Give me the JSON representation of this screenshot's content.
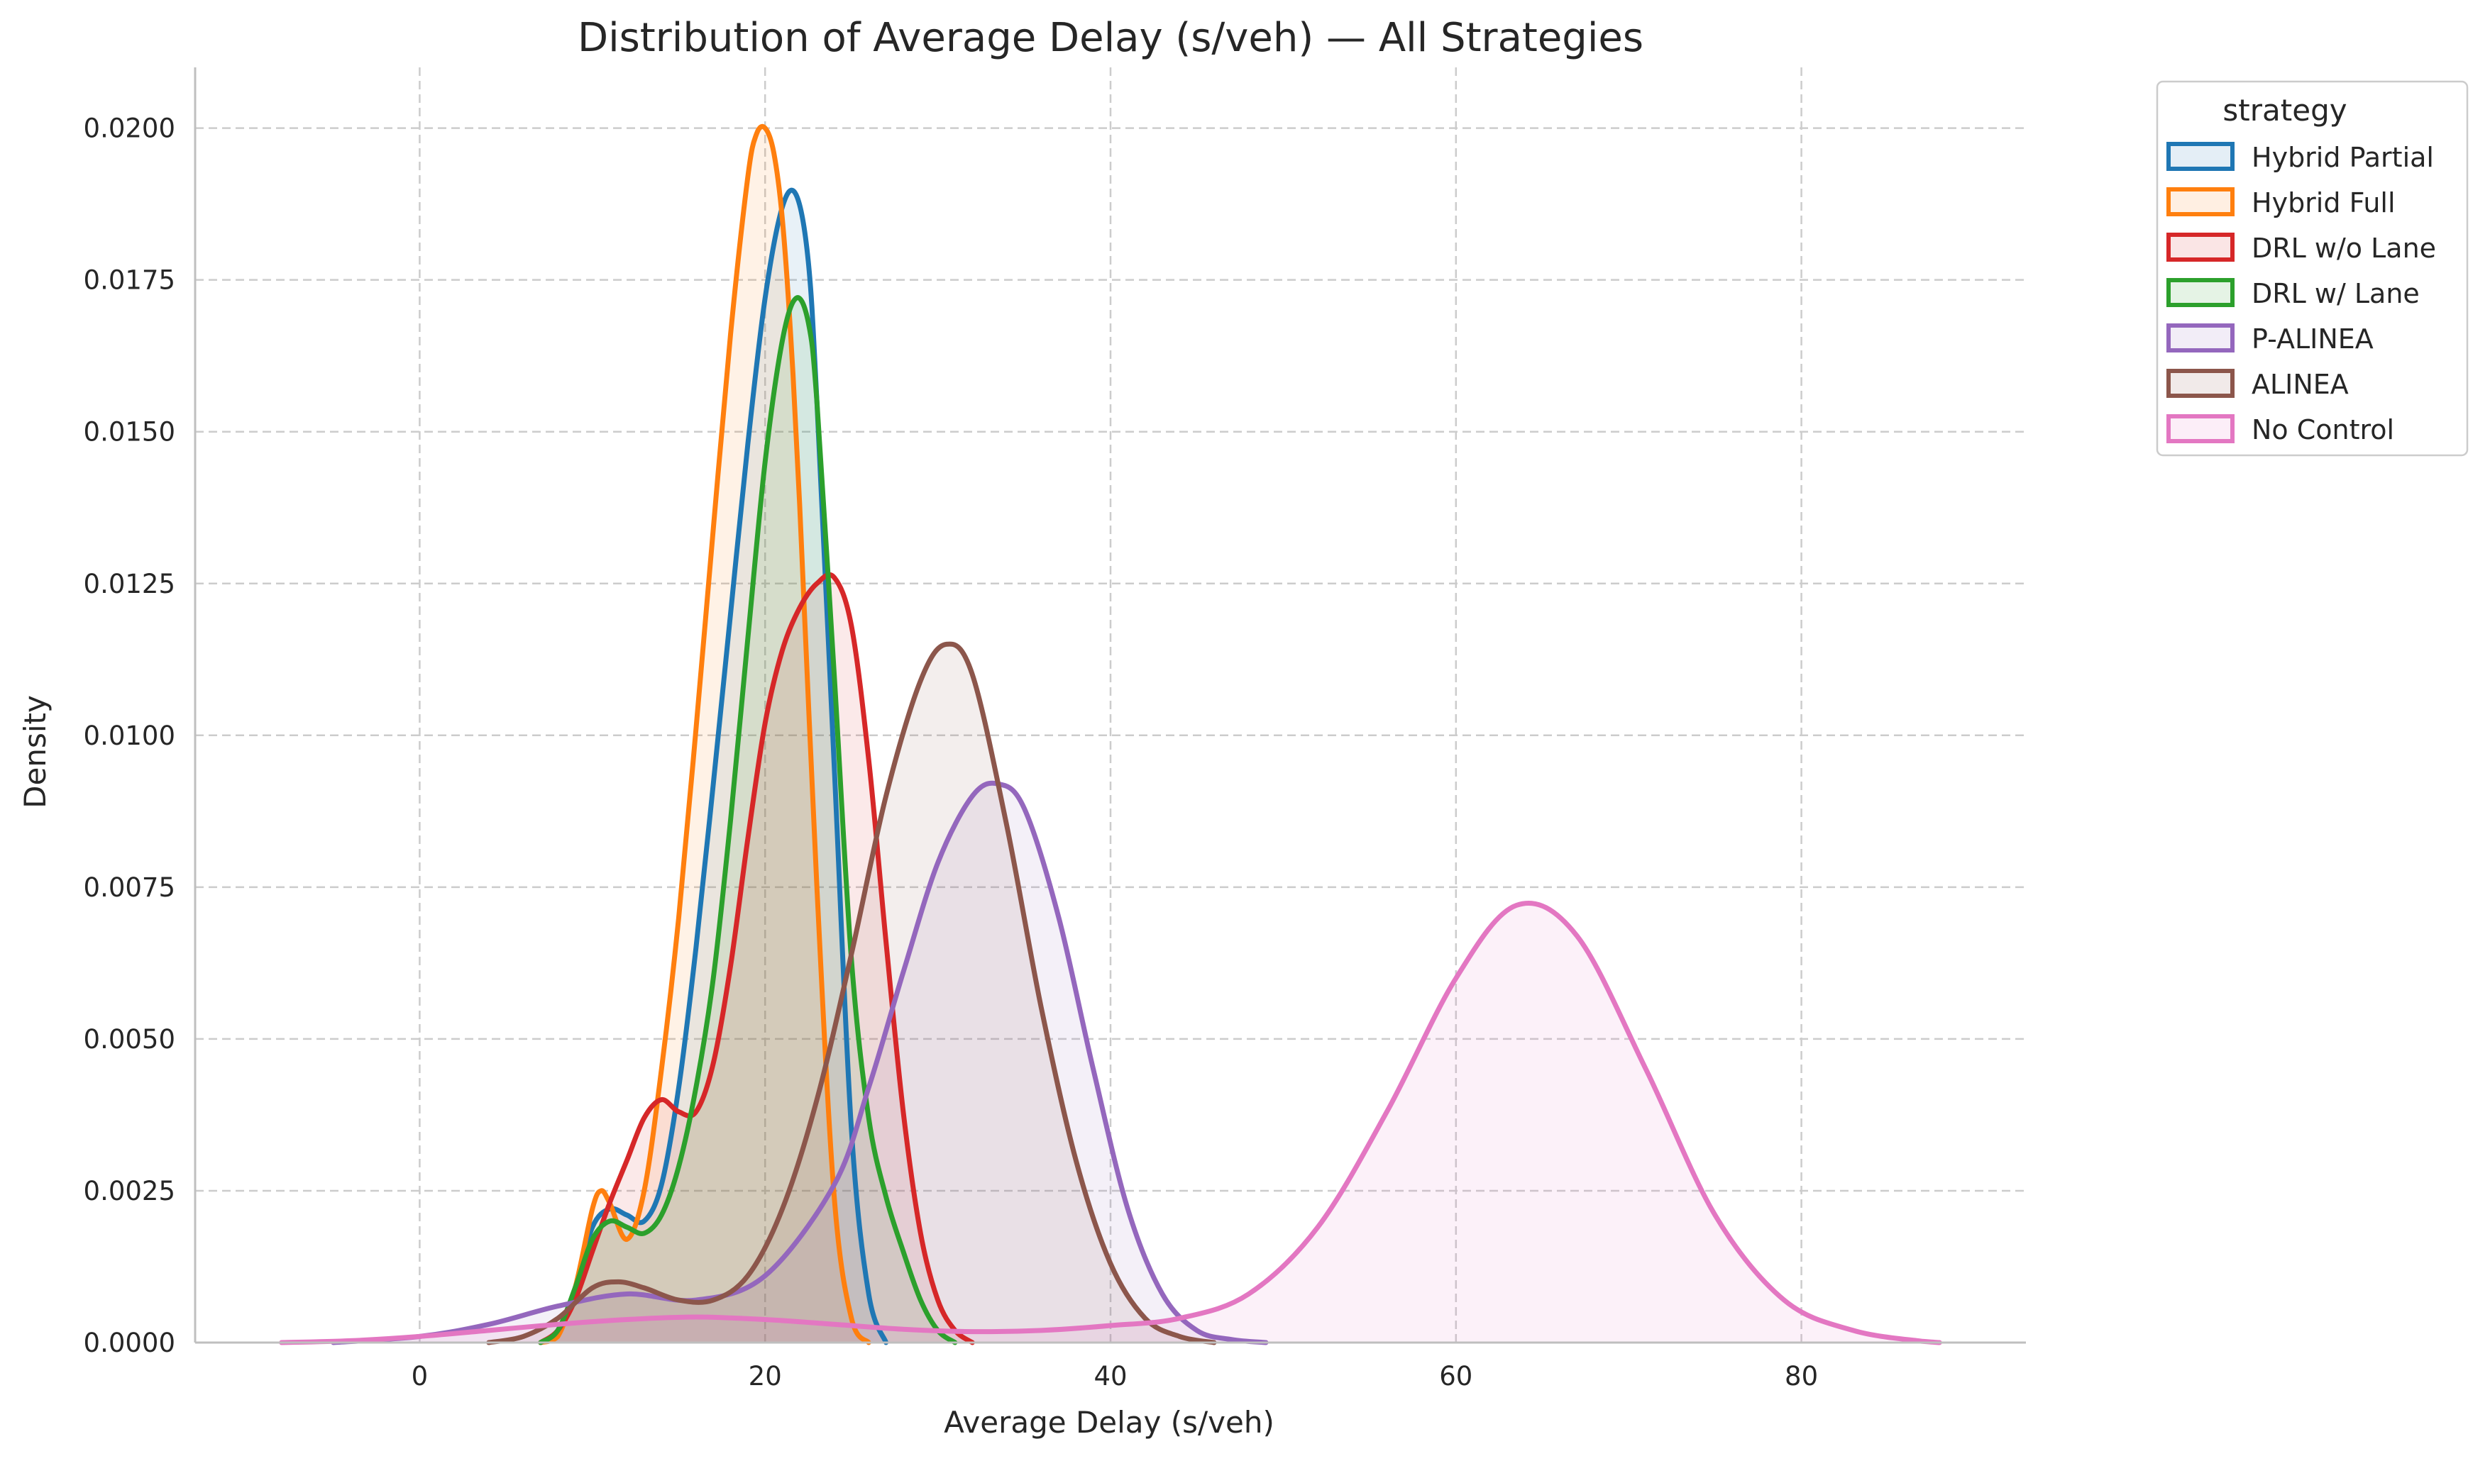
{
  "chart_data": {
    "type": "area",
    "title": "Distribution of Average Delay (s/veh) — All Strategies",
    "xlabel": "Average Delay (s/veh)",
    "ylabel": "Density",
    "xlim": [
      -13,
      93
    ],
    "ylim": [
      0,
      0.021
    ],
    "x_ticks": [
      0,
      20,
      40,
      60,
      80
    ],
    "x_tick_labels": [
      "0",
      "20",
      "40",
      "60",
      "80"
    ],
    "y_ticks": [
      0,
      0.0025,
      0.005,
      0.0075,
      0.01,
      0.0125,
      0.015,
      0.0175,
      0.02
    ],
    "y_tick_labels": [
      "0.0000",
      "0.0025",
      "0.0050",
      "0.0075",
      "0.0100",
      "0.0125",
      "0.0150",
      "0.0175",
      "0.0200"
    ],
    "grid": true,
    "legend": {
      "title": "strategy",
      "placement": "outside-top-right"
    },
    "series": [
      {
        "name": "Hybrid Partial",
        "color": "#1f77b4",
        "x": [
          7,
          8,
          9,
          10,
          11,
          12,
          13,
          14,
          15,
          16,
          17,
          18,
          19,
          20,
          21,
          21.8,
          22.5,
          23,
          24,
          25,
          26,
          27
        ],
        "y": [
          0,
          0.0002,
          0.0009,
          0.0019,
          0.0022,
          0.0021,
          0.002,
          0.0026,
          0.0042,
          0.0065,
          0.0092,
          0.012,
          0.0148,
          0.0172,
          0.0187,
          0.0189,
          0.0178,
          0.0155,
          0.0095,
          0.0035,
          0.0008,
          0
        ]
      },
      {
        "name": "Hybrid Full",
        "color": "#ff7f0e",
        "x": [
          7,
          8,
          9,
          10,
          10.5,
          11,
          12,
          13,
          14,
          15,
          16,
          17,
          18,
          19,
          19.5,
          20,
          20.5,
          21,
          21.5,
          22,
          23,
          24,
          25,
          26
        ],
        "y": [
          0,
          0.0001,
          0.0009,
          0.0022,
          0.0025,
          0.0023,
          0.0017,
          0.0025,
          0.0045,
          0.007,
          0.0101,
          0.0134,
          0.0166,
          0.0192,
          0.0199,
          0.02,
          0.0196,
          0.0185,
          0.0165,
          0.0138,
          0.0075,
          0.0024,
          0.0004,
          0
        ]
      },
      {
        "name": "DRL w/o Lane",
        "color": "#d62728",
        "x": [
          7,
          8,
          9,
          10,
          11,
          12,
          13,
          14,
          15,
          16,
          17,
          18,
          19,
          20,
          21,
          22,
          23,
          24,
          25,
          26,
          27,
          28,
          29,
          30,
          31,
          32
        ],
        "y": [
          0,
          0.0002,
          0.0007,
          0.0015,
          0.0023,
          0.003,
          0.0037,
          0.004,
          0.0038,
          0.0038,
          0.0046,
          0.0062,
          0.0083,
          0.0102,
          0.0114,
          0.0121,
          0.0125,
          0.0126,
          0.0118,
          0.0096,
          0.0066,
          0.0038,
          0.0018,
          0.0007,
          0.0002,
          0
        ]
      },
      {
        "name": "DRL w/ Lane",
        "color": "#2ca02c",
        "x": [
          7,
          8,
          9,
          10,
          11,
          12,
          13,
          14,
          15,
          16,
          17,
          18,
          19,
          20,
          21,
          21.8,
          22.5,
          23,
          24,
          25,
          26,
          27,
          28,
          29,
          30,
          31
        ],
        "y": [
          0,
          0.0002,
          0.0009,
          0.0017,
          0.002,
          0.0019,
          0.0018,
          0.0021,
          0.0029,
          0.0042,
          0.006,
          0.0086,
          0.0116,
          0.0145,
          0.0165,
          0.0172,
          0.0168,
          0.0155,
          0.011,
          0.0063,
          0.0037,
          0.0024,
          0.0015,
          0.0007,
          0.0002,
          0
        ]
      },
      {
        "name": "P-ALINEA",
        "color": "#9467bd",
        "x": [
          -5,
          0,
          4,
          8,
          12,
          16,
          20,
          24,
          26,
          28,
          30,
          32,
          33.5,
          35,
          37,
          39,
          41,
          43,
          45,
          47,
          49
        ],
        "y": [
          0,
          0.0001,
          0.0003,
          0.0006,
          0.0008,
          0.0007,
          0.0011,
          0.0026,
          0.0042,
          0.0061,
          0.0079,
          0.009,
          0.0092,
          0.0088,
          0.007,
          0.0045,
          0.0022,
          0.0008,
          0.0002,
          5e-05,
          0
        ]
      },
      {
        "name": "ALINEA",
        "color": "#8c564b",
        "x": [
          4,
          6,
          8,
          10,
          11.5,
          13,
          15,
          17,
          19,
          21,
          23,
          25,
          27,
          29,
          30.5,
          32,
          34,
          36,
          38,
          40,
          42,
          44,
          46
        ],
        "y": [
          0,
          0.0001,
          0.0004,
          0.0009,
          0.001,
          0.0009,
          0.0007,
          0.0007,
          0.0011,
          0.0022,
          0.004,
          0.0064,
          0.009,
          0.0109,
          0.0115,
          0.011,
          0.0085,
          0.0055,
          0.003,
          0.0013,
          0.0004,
          0.0001,
          0
        ]
      },
      {
        "name": "No Control",
        "color": "#e377c2",
        "x": [
          -8,
          -4,
          0,
          4,
          8,
          12,
          16,
          20,
          24,
          28,
          32,
          36,
          40,
          44,
          48,
          52,
          56,
          60,
          63.5,
          67,
          71,
          75,
          79,
          83,
          87,
          88
        ],
        "y": [
          0,
          3e-05,
          0.0001,
          0.0002,
          0.0003,
          0.00038,
          0.00042,
          0.00038,
          0.0003,
          0.00022,
          0.00018,
          0.0002,
          0.00028,
          0.0004,
          0.0008,
          0.0019,
          0.0038,
          0.006,
          0.0072,
          0.0067,
          0.0045,
          0.0021,
          0.0007,
          0.0002,
          2e-05,
          0
        ]
      }
    ]
  }
}
